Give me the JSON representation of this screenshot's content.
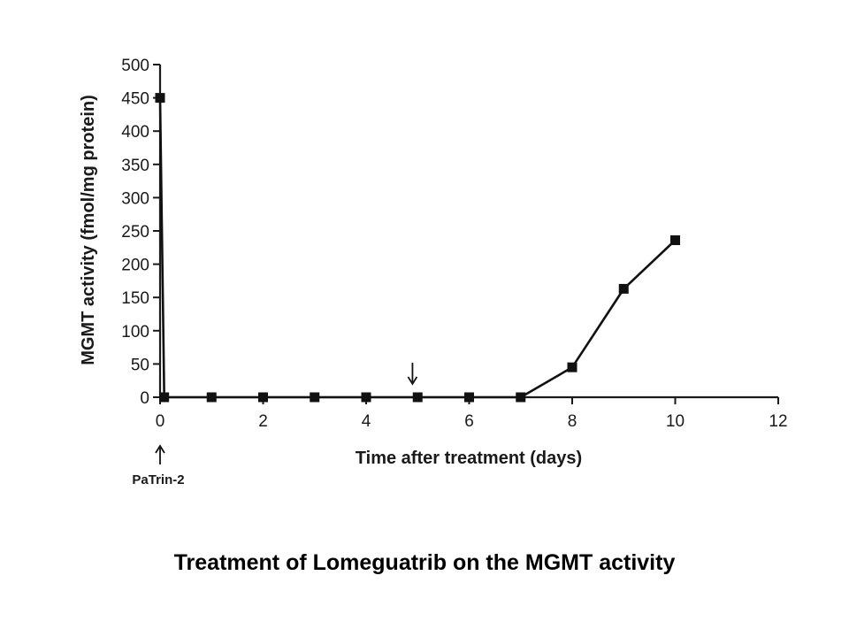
{
  "caption": "Treatment of Lomeguatrib on the MGMT activity",
  "chart_data": {
    "type": "line",
    "xlabel": "Time after treatment (days)",
    "ylabel": "MGMT activity (fmol/mg protein)",
    "xlim": [
      0,
      12
    ],
    "ylim": [
      0,
      500
    ],
    "xticks": [
      0,
      2,
      4,
      6,
      8,
      10,
      12
    ],
    "yticks": [
      0,
      50,
      100,
      150,
      200,
      250,
      300,
      350,
      400,
      450,
      500
    ],
    "grid": false,
    "series": [
      {
        "x": [
          0,
          0.08,
          1,
          2,
          3,
          4,
          5,
          6,
          7,
          8,
          9,
          10
        ],
        "y": [
          450,
          0,
          0,
          0,
          0,
          0,
          0,
          0,
          0,
          45,
          163,
          236
        ]
      }
    ],
    "annotations": [
      {
        "x": 0,
        "text": "PaTrin-2",
        "arrow": "up"
      },
      {
        "x": 4.9,
        "y": 20,
        "text": "",
        "arrow": "down"
      }
    ]
  }
}
